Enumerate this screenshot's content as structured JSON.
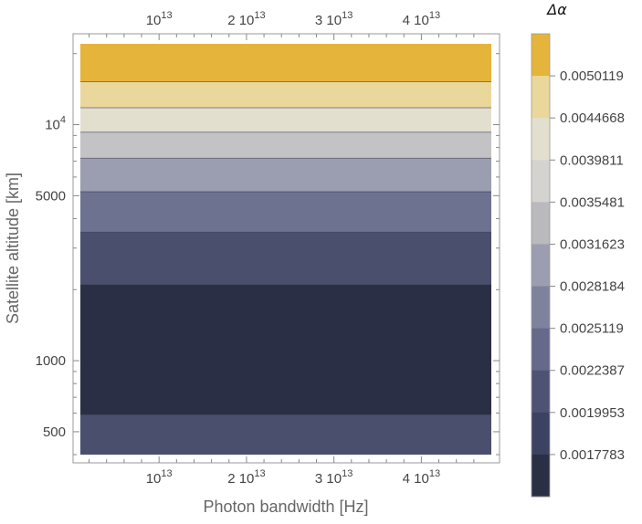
{
  "chart_data": {
    "type": "heatmap",
    "xlabel": "Photon bandwidth [Hz]",
    "ylabel": "Satellite altitude [km]",
    "y_scale": "log",
    "x_ticks": [
      {
        "value": 10000000000000.0,
        "mantissa": "",
        "exp": "13"
      },
      {
        "value": 20000000000000.0,
        "mantissa": "2 ",
        "exp": "13"
      },
      {
        "value": 30000000000000.0,
        "mantissa": "3 ",
        "exp": "13"
      },
      {
        "value": 40000000000000.0,
        "mantissa": "4 ",
        "exp": "13"
      }
    ],
    "y_ticks": [
      {
        "value": 500,
        "label": "500",
        "exp": ""
      },
      {
        "value": 1000,
        "label": "1000",
        "exp": ""
      },
      {
        "value": 5000,
        "label": "5000",
        "exp": ""
      },
      {
        "value": 10000,
        "label": "10",
        "exp": "4"
      }
    ],
    "xlim": [
      1000000000000.0,
      48000000000000.0
    ],
    "ylim": [
      400,
      22000
    ],
    "legend": {
      "title": "Δα",
      "position": "right",
      "levels": [
        "0.0050119",
        "0.0044668",
        "0.0039811",
        "0.0035481",
        "0.0031623",
        "0.0028184",
        "0.0025119",
        "0.0022387",
        "0.0019953",
        "0.0017783"
      ],
      "colors_top_to_bottom": [
        "#e5b43b",
        "#ead79b",
        "#e3dfce",
        "#d4d3d0",
        "#b9b9be",
        "#9b9db0",
        "#7f829c",
        "#66698a",
        "#4e5374",
        "#3c4262",
        "#2a2f45"
      ]
    },
    "bands_top_to_bottom": [
      {
        "y_from": 22000,
        "y_to": 15200,
        "color": "#e5b43b"
      },
      {
        "y_from": 15200,
        "y_to": 11800,
        "color": "#ead79b"
      },
      {
        "y_from": 11800,
        "y_to": 9300,
        "color": "#e3dfce"
      },
      {
        "y_from": 9300,
        "y_to": 7200,
        "color": "#c3c3c6"
      },
      {
        "y_from": 7200,
        "y_to": 5200,
        "color": "#9b9db0"
      },
      {
        "y_from": 5200,
        "y_to": 3500,
        "color": "#6e7291"
      },
      {
        "y_from": 3500,
        "y_to": 2100,
        "color": "#4a4f6d"
      },
      {
        "y_from": 2100,
        "y_to": 590,
        "color": "#2a2f45"
      },
      {
        "y_from": 590,
        "y_to": 400,
        "color": "#4a4f6d"
      }
    ]
  }
}
